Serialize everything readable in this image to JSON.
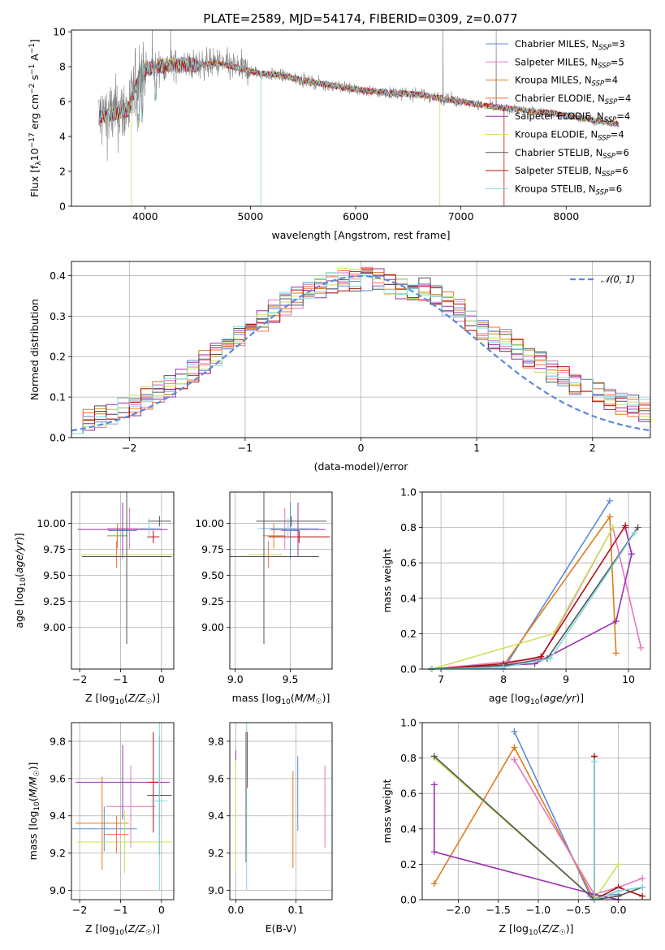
{
  "figure_title": "PLATE=2589, MJD=54174, FIBERID=0309, z=0.077",
  "colors": {
    "Chabrier MILES": "#5b8bd6",
    "Salpeter MILES": "#e377c2",
    "Kroupa MILES": "#e07b1a",
    "Chabrier ELODIE": "#ff6a3d",
    "Salpeter ELODIE": "#9b2fae",
    "Kroupa ELODIE": "#c8e35a",
    "Chabrier STELIB": "#555555",
    "Salpeter STELIB": "#b30f0f",
    "Kroupa STELIB": "#7fd8e0",
    "data": "#808080"
  },
  "legend_top": [
    {
      "pre": "Chabrier MILES, N",
      "sub": "SSP",
      "post": "=3",
      "key": "Chabrier MILES"
    },
    {
      "pre": "Salpeter MILES, N",
      "sub": "SSP",
      "post": "=5",
      "key": "Salpeter MILES"
    },
    {
      "pre": "Kroupa MILES, N",
      "sub": "SSP",
      "post": "=4",
      "key": "Kroupa MILES"
    },
    {
      "pre": "Chabrier ELODIE, N",
      "sub": "SSP",
      "post": "=4",
      "key": "Chabrier ELODIE"
    },
    {
      "pre": "Salpeter ELODIE, N",
      "sub": "SSP",
      "post": "=4",
      "key": "Salpeter ELODIE"
    },
    {
      "pre": "Kroupa ELODIE, N",
      "sub": "SSP",
      "post": "=4",
      "key": "Kroupa ELODIE"
    },
    {
      "pre": "Chabrier STELIB, N",
      "sub": "SSP",
      "post": "=6",
      "key": "Chabrier STELIB"
    },
    {
      "pre": "Salpeter STELIB, N",
      "sub": "SSP",
      "post": "=6",
      "key": "Salpeter STELIB"
    },
    {
      "pre": "Kroupa STELIB, N",
      "sub": "SSP",
      "post": "=6",
      "key": "Kroupa STELIB"
    }
  ],
  "legend_hist": "𝒩(0, 1)",
  "chart_data": [
    {
      "id": "spectrum",
      "type": "line",
      "xlabel": "wavelength [Angstrom, rest frame]",
      "ylabel": "Flux [f_λ 10^-17 erg cm^-2 s^-1 A^-1]",
      "xlim": [
        3300,
        8800
      ],
      "ylim": [
        0,
        10.1
      ],
      "xticks": [
        4000,
        5000,
        6000,
        7000,
        8000
      ],
      "yticks": [
        0,
        2,
        4,
        6,
        8,
        10
      ],
      "data_range": [
        3560,
        8500
      ],
      "model_continuum": [
        [
          3560,
          5.1
        ],
        [
          3700,
          5.3
        ],
        [
          3850,
          5.6
        ],
        [
          3950,
          7.7
        ],
        [
          4100,
          8.0
        ],
        [
          4300,
          8.1
        ],
        [
          4500,
          8.1
        ],
        [
          4700,
          8.2
        ],
        [
          4900,
          7.9
        ],
        [
          5100,
          7.6
        ],
        [
          5300,
          7.5
        ],
        [
          5500,
          7.2
        ],
        [
          5800,
          6.9
        ],
        [
          6000,
          6.7
        ],
        [
          6300,
          6.5
        ],
        [
          6600,
          6.4
        ],
        [
          6900,
          6.1
        ],
        [
          7100,
          5.9
        ],
        [
          7300,
          5.7
        ],
        [
          7600,
          5.5
        ],
        [
          7900,
          5.3
        ],
        [
          8200,
          5.0
        ],
        [
          8500,
          4.7
        ]
      ]
    },
    {
      "id": "residuals",
      "type": "histogram",
      "xlabel": "(data-model)/error",
      "ylabel": "Normed distribution",
      "xlim": [
        -2.5,
        2.5
      ],
      "ylim": [
        0,
        0.435
      ],
      "xticks": [
        -2,
        -1,
        0,
        1,
        2
      ],
      "yticks": [
        0.0,
        0.1,
        0.2,
        0.3,
        0.4
      ],
      "reference": "normal(0,1)"
    },
    {
      "id": "age_vs_Z",
      "type": "errorbar",
      "xlabel": "Z [log10(Z/Z☉)]",
      "ylabel": "age [log10(age/yr)]",
      "xlim": [
        -2.2,
        0.3
      ],
      "ylim": [
        8.6,
        10.3
      ],
      "xticks": [
        -2,
        -1,
        0
      ],
      "yticks": [
        9.0,
        9.25,
        9.5,
        9.75,
        10.0
      ],
      "points": [
        {
          "s": "Chabrier MILES",
          "x": -0.95,
          "xe": 0.35,
          "y": 9.93,
          "ye": 0.27
        },
        {
          "s": "Salpeter MILES",
          "x": -0.78,
          "xe": 0.55,
          "y": 9.95,
          "ye": 0.2
        },
        {
          "s": "Kroupa MILES",
          "x": -1.08,
          "xe": 0.25,
          "y": 9.88,
          "ye": 0.12
        },
        {
          "s": "Chabrier ELODIE",
          "x": -1.1,
          "xe": 0.3,
          "y": 9.7,
          "ye": 0.13
        },
        {
          "s": "Salpeter ELODIE",
          "x": -0.95,
          "xe": 1.1,
          "y": 9.94,
          "ye": 0.26
        },
        {
          "s": "Kroupa ELODIE",
          "x": -0.85,
          "xe": 1.15,
          "y": 9.7,
          "ye": 0.48
        },
        {
          "s": "Chabrier STELIB",
          "x": -0.05,
          "xe": 0.28,
          "y": 10.02,
          "ye": 0.05
        },
        {
          "s": "Salpeter STELIB",
          "x": -0.2,
          "xe": 0.15,
          "y": 9.87,
          "ye": 0.06
        },
        {
          "s": "Kroupa STELIB",
          "x": -0.3,
          "xe": 0.28,
          "y": 9.95,
          "ye": 0.1
        },
        {
          "s": "Chabrier STELIB",
          "x": -0.85,
          "xe": 1.1,
          "y": 9.68,
          "ye": 0.84
        }
      ]
    },
    {
      "id": "age_vs_mass",
      "type": "errorbar",
      "xlabel": "mass [log10(M/M☉)]",
      "ylabel": "",
      "xlim": [
        8.95,
        9.88
      ],
      "ylim": [
        8.6,
        10.3
      ],
      "xticks": [
        9.0,
        9.5
      ],
      "yticks": [
        9.0,
        9.25,
        9.5,
        9.75,
        10.0
      ],
      "points": [
        {
          "s": "Chabrier MILES",
          "x": 9.5,
          "xe": 0.08,
          "y": 9.93,
          "ye": 0.27
        },
        {
          "s": "Salpeter MILES",
          "x": 9.45,
          "xe": 0.22,
          "y": 9.95,
          "ye": 0.2
        },
        {
          "s": "Kroupa MILES",
          "x": 9.35,
          "xe": 0.1,
          "y": 9.88,
          "ye": 0.12
        },
        {
          "s": "Chabrier ELODIE",
          "x": 9.3,
          "xe": 0.12,
          "y": 9.7,
          "ye": 0.13
        },
        {
          "s": "Salpeter ELODIE",
          "x": 9.57,
          "xe": 0.25,
          "y": 9.94,
          "ye": 0.26
        },
        {
          "s": "Kroupa ELODIE",
          "x": 9.26,
          "xe": 0.15,
          "y": 9.7,
          "ye": 0.48
        },
        {
          "s": "Chabrier STELIB",
          "x": 9.51,
          "xe": 0.32,
          "y": 10.02,
          "ye": 0.05
        },
        {
          "s": "Salpeter STELIB",
          "x": 9.58,
          "xe": 0.28,
          "y": 9.87,
          "ye": 0.06
        },
        {
          "s": "Kroupa STELIB",
          "x": 9.48,
          "xe": 0.28,
          "y": 9.95,
          "ye": 0.1
        },
        {
          "s": "Chabrier STELIB",
          "x": 9.26,
          "xe": 0.5,
          "y": 9.68,
          "ye": 0.84
        }
      ]
    },
    {
      "id": "weight_vs_age",
      "type": "line",
      "xlabel": "age [log10(age/yr)]",
      "ylabel": "mass weight",
      "xlim": [
        6.7,
        10.35
      ],
      "ylim": [
        0,
        1.0
      ],
      "xticks": [
        7,
        8,
        9,
        10
      ],
      "yticks": [
        0.0,
        0.2,
        0.4,
        0.6,
        0.8,
        1.0
      ],
      "series": [
        {
          "s": "Chabrier MILES",
          "pts": [
            [
              6.85,
              0.0
            ],
            [
              8.0,
              0.0
            ],
            [
              9.7,
              0.95
            ]
          ]
        },
        {
          "s": "Kroupa MILES",
          "pts": [
            [
              6.85,
              0.0
            ],
            [
              8.0,
              0.02
            ],
            [
              9.7,
              0.86
            ],
            [
              9.8,
              0.09
            ]
          ]
        },
        {
          "s": "Salpeter MILES",
          "pts": [
            [
              6.85,
              0.0
            ],
            [
              8.6,
              0.06
            ],
            [
              9.75,
              0.8
            ],
            [
              10.2,
              0.12
            ]
          ]
        },
        {
          "s": "Kroupa ELODIE",
          "pts": [
            [
              6.85,
              0.0
            ],
            [
              8.8,
              0.2
            ],
            [
              9.75,
              0.8
            ]
          ]
        },
        {
          "s": "Salpeter ELODIE",
          "pts": [
            [
              6.85,
              0.0
            ],
            [
              8.5,
              0.03
            ],
            [
              9.8,
              0.27
            ],
            [
              10.05,
              0.65
            ],
            [
              9.95,
              0.8
            ]
          ]
        },
        {
          "s": "Chabrier STELIB",
          "pts": [
            [
              6.85,
              0.0
            ],
            [
              8.0,
              0.02
            ],
            [
              8.7,
              0.06
            ],
            [
              10.15,
              0.8
            ]
          ]
        },
        {
          "s": "Salpeter STELIB",
          "pts": [
            [
              6.85,
              0.0
            ],
            [
              8.0,
              0.03
            ],
            [
              8.6,
              0.07
            ],
            [
              9.95,
              0.81
            ]
          ]
        },
        {
          "s": "Kroupa STELIB",
          "pts": [
            [
              6.85,
              0.0
            ],
            [
              8.0,
              0.01
            ],
            [
              8.75,
              0.06
            ],
            [
              10.1,
              0.77
            ]
          ]
        }
      ]
    },
    {
      "id": "mass_vs_Z",
      "type": "errorbar",
      "xlabel": "Z [log10(Z/Z☉)]",
      "ylabel": "mass [log10(M/M☉)]",
      "xlim": [
        -2.2,
        0.3
      ],
      "ylim": [
        8.95,
        9.9
      ],
      "xticks": [
        -2,
        -1,
        0
      ],
      "yticks": [
        9.0,
        9.2,
        9.4,
        9.6,
        9.8
      ],
      "points": [
        {
          "s": "Chabrier MILES",
          "x": -1.4,
          "xe": 0.8,
          "y": 9.33,
          "ye": 0.12
        },
        {
          "s": "Kroupa MILES",
          "x": -1.45,
          "xe": 0.65,
          "y": 9.36,
          "ye": 0.25
        },
        {
          "s": "Salpeter MILES",
          "x": -0.75,
          "xe": 0.6,
          "y": 9.45,
          "ye": 0.22
        },
        {
          "s": "Salpeter ELODIE",
          "x": -0.95,
          "xe": 1.15,
          "y": 9.58,
          "ye": 0.2
        },
        {
          "s": "Kroupa ELODIE",
          "x": -0.9,
          "xe": 1.15,
          "y": 9.26,
          "ye": 0.17
        },
        {
          "s": "Chabrier STELIB",
          "x": -0.05,
          "xe": 0.3,
          "y": 9.51,
          "ye": 0.32
        },
        {
          "s": "Salpeter STELIB",
          "x": -0.2,
          "xe": 0.12,
          "y": 9.58,
          "ye": 0.27
        },
        {
          "s": "Kroupa STELIB",
          "x": -0.05,
          "xe": 0.2,
          "y": 9.48,
          "ye": 0.48
        },
        {
          "s": "Chabrier ELODIE",
          "x": -1.1,
          "xe": 0.3,
          "y": 9.3,
          "ye": 0.1
        }
      ]
    },
    {
      "id": "mass_vs_EBV",
      "type": "errorbar",
      "xlabel": "E(B-V)",
      "ylabel": "",
      "xlim": [
        -0.01,
        0.16
      ],
      "ylim": [
        8.95,
        9.9
      ],
      "xticks": [
        0.0,
        0.1
      ],
      "yticks": [
        9.0,
        9.2,
        9.4,
        9.6,
        9.8
      ],
      "points": [
        {
          "s": "Chabrier MILES",
          "x": 0.103,
          "ye": 0.2,
          "y": 9.52
        },
        {
          "s": "Kroupa MILES",
          "x": 0.095,
          "ye": 0.26,
          "y": 9.38
        },
        {
          "s": "Salpeter MILES",
          "x": 0.148,
          "ye": 0.22,
          "y": 9.45
        },
        {
          "s": "Salpeter ELODIE",
          "x": 0.0,
          "ye": 0.03,
          "y": 9.72
        },
        {
          "s": "Kroupa ELODIE",
          "x": 0.0,
          "ye": 0.3,
          "y": 9.4
        },
        {
          "s": "Chabrier STELIB",
          "x": 0.017,
          "ye": 0.35,
          "y": 9.5
        },
        {
          "s": "Salpeter STELIB",
          "x": 0.019,
          "ye": 0.15,
          "y": 9.7
        },
        {
          "s": "Kroupa STELIB",
          "x": 0.018,
          "ye": 0.45,
          "y": 9.45
        }
      ]
    },
    {
      "id": "weight_vs_Z",
      "type": "line",
      "xlabel": "Z [log10(Z/Z☉)]",
      "ylabel": "mass weight",
      "xlim": [
        -2.45,
        0.4
      ],
      "ylim": [
        0,
        1.0
      ],
      "xticks": [
        -2.0,
        -1.5,
        -1.0,
        -0.5,
        0.0
      ],
      "yticks": [
        0.0,
        0.2,
        0.4,
        0.6,
        0.8,
        1.0
      ],
      "series": [
        {
          "s": "Chabrier MILES",
          "pts": [
            [
              -1.3,
              0.95
            ],
            [
              -0.35,
              0.02
            ],
            [
              0.0,
              0.03
            ]
          ]
        },
        {
          "s": "Kroupa MILES",
          "pts": [
            [
              -2.3,
              0.09
            ],
            [
              -1.3,
              0.86
            ],
            [
              -0.3,
              0.0
            ],
            [
              0.0,
              0.05
            ]
          ]
        },
        {
          "s": "Salpeter MILES",
          "pts": [
            [
              -1.3,
              0.79
            ],
            [
              -0.3,
              0.03
            ],
            [
              0.0,
              0.07
            ],
            [
              0.3,
              0.12
            ]
          ]
        },
        {
          "s": "Kroupa ELODIE",
          "pts": [
            [
              -2.3,
              0.8
            ],
            [
              -0.3,
              0.0
            ],
            [
              0.0,
              0.2
            ]
          ]
        },
        {
          "s": "Salpeter ELODIE",
          "pts": [
            [
              -2.3,
              0.65
            ],
            [
              -2.3,
              0.27
            ],
            [
              -0.3,
              0.03
            ],
            [
              0.0,
              0.0
            ]
          ]
        },
        {
          "s": "Chabrier STELIB",
          "pts": [
            [
              -2.3,
              0.81
            ],
            [
              -0.3,
              0.0
            ],
            [
              0.0,
              0.02
            ],
            [
              0.3,
              0.07
            ]
          ]
        },
        {
          "s": "Salpeter STELIB",
          "pts": [
            [
              -0.3,
              0.81
            ],
            [
              -0.3,
              0.0
            ],
            [
              0.0,
              0.07
            ],
            [
              0.3,
              0.02
            ]
          ]
        },
        {
          "s": "Kroupa STELIB",
          "pts": [
            [
              -0.3,
              0.78
            ],
            [
              -0.3,
              0.0
            ],
            [
              0.0,
              0.05
            ],
            [
              0.3,
              0.07
            ]
          ]
        }
      ]
    }
  ]
}
